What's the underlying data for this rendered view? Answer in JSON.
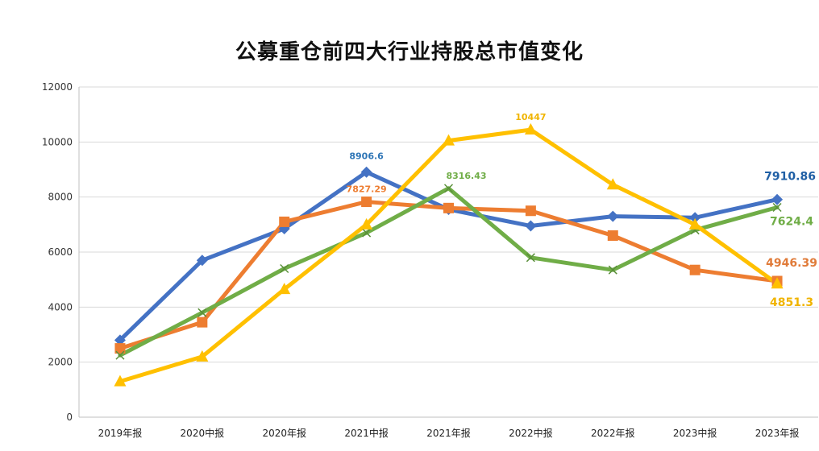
{
  "chart_data": {
    "type": "line",
    "title": "公募重仓前四大行业持股总市值变化",
    "xlabel": "",
    "ylabel": "",
    "ylim": [
      0,
      12000
    ],
    "yticks": [
      "0",
      "2000",
      "4000",
      "6000",
      "8000",
      "10000",
      "12000"
    ],
    "grid": true,
    "legend": "none",
    "categories": [
      "2019年报",
      "2020中报",
      "2020年报",
      "2021中报",
      "2021年报",
      "2022中报",
      "2022年报",
      "2023中报",
      "2023年报"
    ],
    "series": [
      {
        "color": "#4472C4",
        "marker": "diamond",
        "values": [
          2800,
          5700,
          6850,
          8906.6,
          7550,
          6950,
          7300,
          7250,
          7910.86
        ],
        "labels": [
          {
            "index": 3,
            "text": "8906.6",
            "color": "#2E75B6",
            "size": "small",
            "dy": -16,
            "dx": 0
          },
          {
            "index": 8,
            "text": "7910.86",
            "color": "#1F5FA5",
            "size": "large",
            "dy": -24,
            "dx": 16
          }
        ]
      },
      {
        "color": "#ED7D31",
        "marker": "square",
        "values": [
          2500,
          3450,
          7100,
          7827.29,
          7600,
          7500,
          6600,
          5350,
          4946.39
        ],
        "labels": [
          {
            "index": 3,
            "text": "7827.29",
            "color": "#ED7D31",
            "size": "small",
            "dy": -12,
            "dx": 0
          },
          {
            "index": 8,
            "text": "4946.39",
            "color": "#E07B39",
            "size": "large",
            "dy": -18,
            "dx": 18
          }
        ]
      },
      {
        "color": "#70AD47",
        "marker": "x",
        "values": [
          2250,
          3800,
          5400,
          6700,
          8316.43,
          5800,
          5350,
          6800,
          7624.4
        ],
        "labels": [
          {
            "index": 4,
            "text": "8316.43",
            "color": "#70AD47",
            "size": "small",
            "dy": -12,
            "dx": 22
          },
          {
            "index": 8,
            "text": "7624.4",
            "color": "#70AD47",
            "size": "large",
            "dy": 22,
            "dx": 18
          }
        ]
      },
      {
        "color": "#FFC000",
        "marker": "triangle",
        "values": [
          1300,
          2200,
          4650,
          7000,
          10050,
          10447,
          8450,
          7000,
          4851.3
        ],
        "labels": [
          {
            "index": 5,
            "text": "10447",
            "color": "#F0B400",
            "size": "small",
            "dy": -12,
            "dx": 0
          },
          {
            "index": 8,
            "text": "4851.3",
            "color": "#F0B400",
            "size": "large",
            "dy": 28,
            "dx": 18
          }
        ]
      }
    ]
  }
}
